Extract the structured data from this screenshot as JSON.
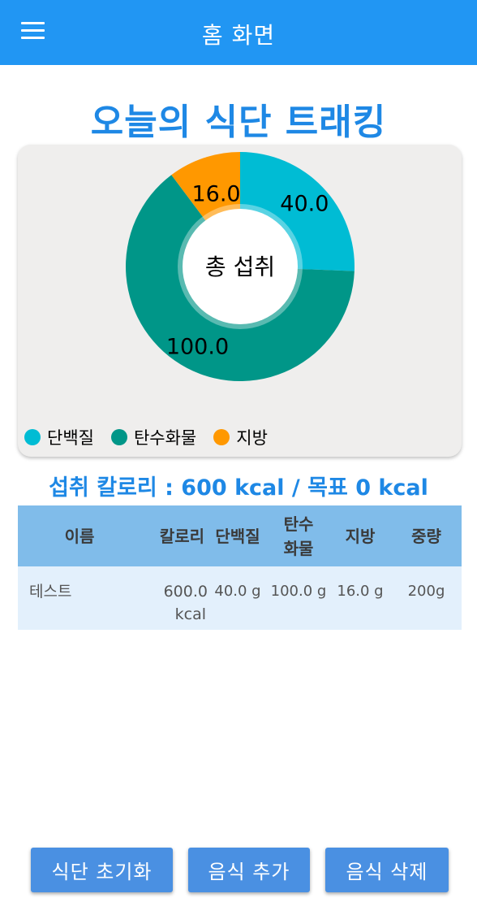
{
  "appbar": {
    "title": "홈 화면",
    "menu_icon": "hamburger-menu-icon"
  },
  "page_title": "오늘의 식단 트래킹",
  "chart_data": {
    "type": "pie",
    "center_label": "총 섭취",
    "slices": [
      {
        "name": "단백질",
        "value": 40.0,
        "label": "40.0",
        "color": "#00BCD4"
      },
      {
        "name": "탄수화물",
        "value": 100.0,
        "label": "100.0",
        "color": "#009688"
      },
      {
        "name": "지방",
        "value": 16.0,
        "label": "16.0",
        "color": "#FF9800"
      }
    ],
    "legend_position": "bottom-left"
  },
  "calorie_summary": "섭취 칼로리 : 600 kcal / 목표 0 kcal",
  "table": {
    "headers": {
      "name": "이름",
      "calories": "칼로리",
      "protein": "단백질",
      "carbs_line1": "탄수",
      "carbs_line2": "화물",
      "fat": "지방",
      "weight": "중량"
    },
    "rows": [
      {
        "name": "테스트",
        "calories_value": "600.0",
        "calories_unit": "kcal",
        "protein": "40.0 g",
        "carbs": "100.0 g",
        "fat": "16.0 g",
        "weight": "200g"
      }
    ]
  },
  "buttons": {
    "reset": "식단 초기화",
    "add": "음식 추가",
    "delete": "음식 삭제"
  }
}
